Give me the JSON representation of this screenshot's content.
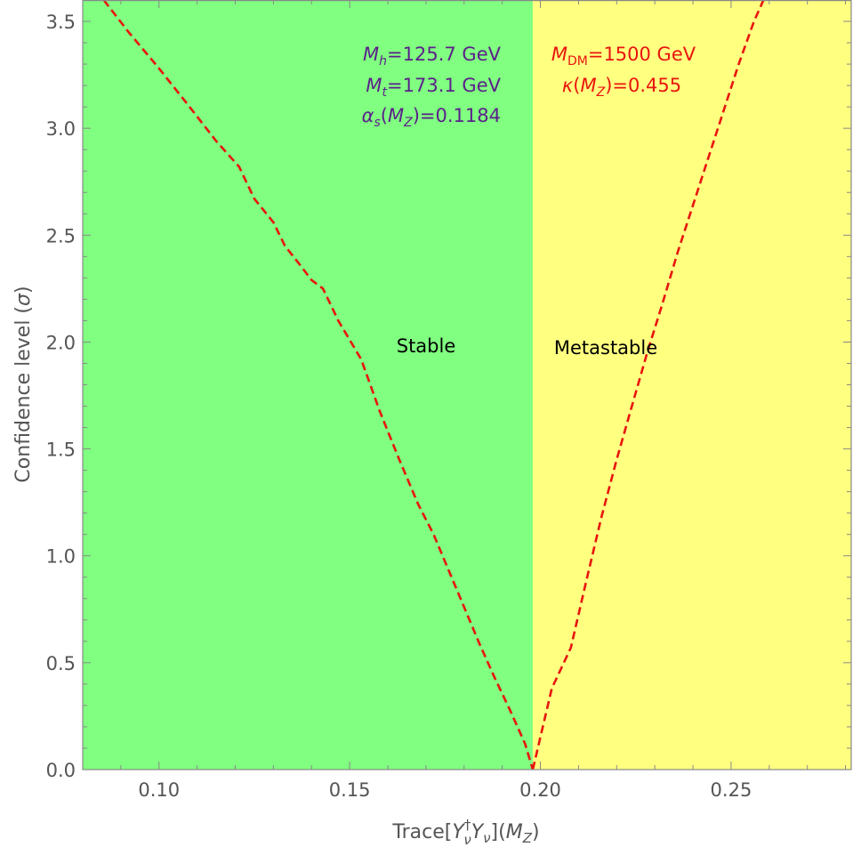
{
  "colors": {
    "stable_region": "#80ff80",
    "metastable_region": "#ffff80",
    "curve": "#e8150f",
    "purple_text": "#5b1f8a",
    "red_text": "#e8150f",
    "frame": "#888888"
  },
  "labels": {
    "xlabel_base": "Trace[",
    "xlabel_y1": "Y",
    "xlabel_sup": "†",
    "xlabel_sub1": "ν",
    "xlabel_y2": "Y",
    "xlabel_sub2": "ν",
    "xlabel_tail1": "](",
    "xlabel_M": "M",
    "xlabel_Z": "Z",
    "xlabel_tail2": ")",
    "ylabel_main": "Confidence level (",
    "ylabel_sigma": "σ",
    "ylabel_close": ")",
    "stable": "Stable",
    "metastable": "Metastable",
    "mh_M": "M",
    "mh_sub": "h",
    "mh_val": "=125.7 GeV",
    "mt_M": "M",
    "mt_sub": "t",
    "mt_val": "=173.1 GeV",
    "as_alpha": "α",
    "as_sub": "s",
    "as_open": "(",
    "as_M": "M",
    "as_Z": "Z",
    "as_val": ")=0.1184",
    "mdm_M": "M",
    "mdm_sub": "DM",
    "mdm_val": "=1500 GeV",
    "kappa": "κ",
    "kappa_open": "(",
    "kappa_M": "M",
    "kappa_Z": "Z",
    "kappa_val": ")=0.455"
  },
  "chart_data": {
    "type": "line",
    "xlabel": "Trace[Y†ν Yν](MZ)",
    "ylabel": "Confidence level (σ)",
    "xlim": [
      0.08,
      0.2815
    ],
    "ylim": [
      0,
      3.6
    ],
    "x_ticks": [
      0.1,
      0.15,
      0.2,
      0.25
    ],
    "x_tick_labels": [
      "0.10",
      "0.15",
      "0.20",
      "0.25"
    ],
    "y_ticks": [
      0,
      0.5,
      1.0,
      1.5,
      2.0,
      2.5,
      3.0,
      3.5
    ],
    "y_tick_labels": [
      "0.0",
      "0.5",
      "1.0",
      "1.5",
      "2.0",
      "2.5",
      "3.0",
      "3.5"
    ],
    "regions": [
      {
        "name": "Stable",
        "x_from": 0.08,
        "x_to": 0.198
      },
      {
        "name": "Metastable",
        "x_from": 0.198,
        "x_to": 0.2815
      }
    ],
    "series": [
      {
        "style": "dashed",
        "x": [
          0.0855,
          0.092,
          0.1,
          0.108,
          0.115,
          0.121,
          0.125,
          0.13,
          0.133,
          0.137,
          0.14,
          0.143,
          0.147,
          0.153,
          0.158,
          0.163,
          0.168,
          0.172,
          0.176,
          0.18,
          0.184,
          0.188,
          0.192,
          0.196,
          0.198
        ],
        "y": [
          3.6,
          3.45,
          3.28,
          3.1,
          2.94,
          2.82,
          2.67,
          2.56,
          2.45,
          2.36,
          2.29,
          2.25,
          2.1,
          1.92,
          1.67,
          1.45,
          1.24,
          1.1,
          0.93,
          0.76,
          0.59,
          0.43,
          0.28,
          0.12,
          0.0
        ]
      },
      {
        "style": "dashed",
        "x": [
          0.198,
          0.203,
          0.208,
          0.212,
          0.216,
          0.22,
          0.224,
          0.228,
          0.232,
          0.236,
          0.24,
          0.244,
          0.248,
          0.252,
          0.256,
          0.2585
        ],
        "y": [
          0.0,
          0.38,
          0.57,
          0.88,
          1.18,
          1.45,
          1.7,
          1.95,
          2.18,
          2.42,
          2.64,
          2.86,
          3.08,
          3.3,
          3.5,
          3.6
        ]
      }
    ],
    "annotations": [
      "Mh=125.7 GeV",
      "Mt=173.1 GeV",
      "αs(MZ)=0.1184",
      "MDM=1500 GeV",
      "κ(MZ)=0.455",
      "Stable",
      "Metastable"
    ]
  }
}
